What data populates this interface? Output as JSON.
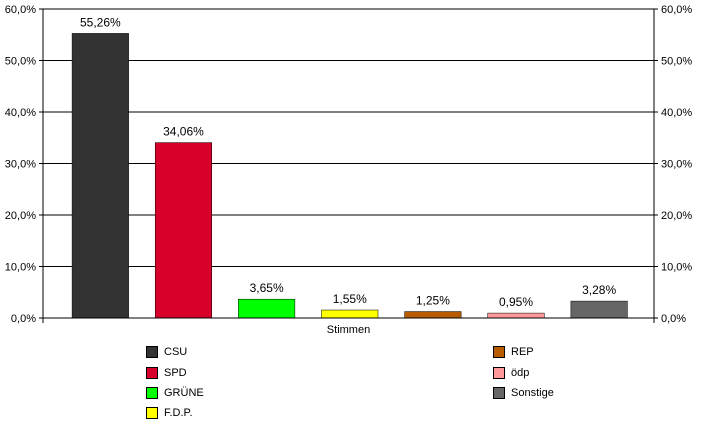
{
  "chart_data": {
    "type": "bar",
    "xlabel": "Stimmen",
    "categories": [
      "CSU",
      "SPD",
      "GRÜNE",
      "F.D.P.",
      "REP",
      "ödp",
      "Sonstige"
    ],
    "values": [
      55.26,
      34.06,
      3.65,
      1.55,
      1.25,
      0.95,
      3.28
    ],
    "data_labels": [
      "55,26%",
      "34,06%",
      "3,65%",
      "1,55%",
      "1,25%",
      "0,95%",
      "3,28%"
    ],
    "colors": [
      "#333333",
      "#d6002a",
      "#00ff00",
      "#ffff00",
      "#b85c00",
      "#ff9999",
      "#666666"
    ],
    "ylim": [
      0,
      60
    ],
    "yticks": [
      0,
      10,
      20,
      30,
      40,
      50,
      60
    ],
    "ytick_labels": [
      "0,0%",
      "10,0%",
      "20,0%",
      "30,0%",
      "40,0%",
      "50,0%",
      "60,0%"
    ],
    "grid": true,
    "secondary_axis": true,
    "legend_position": "bottom"
  }
}
